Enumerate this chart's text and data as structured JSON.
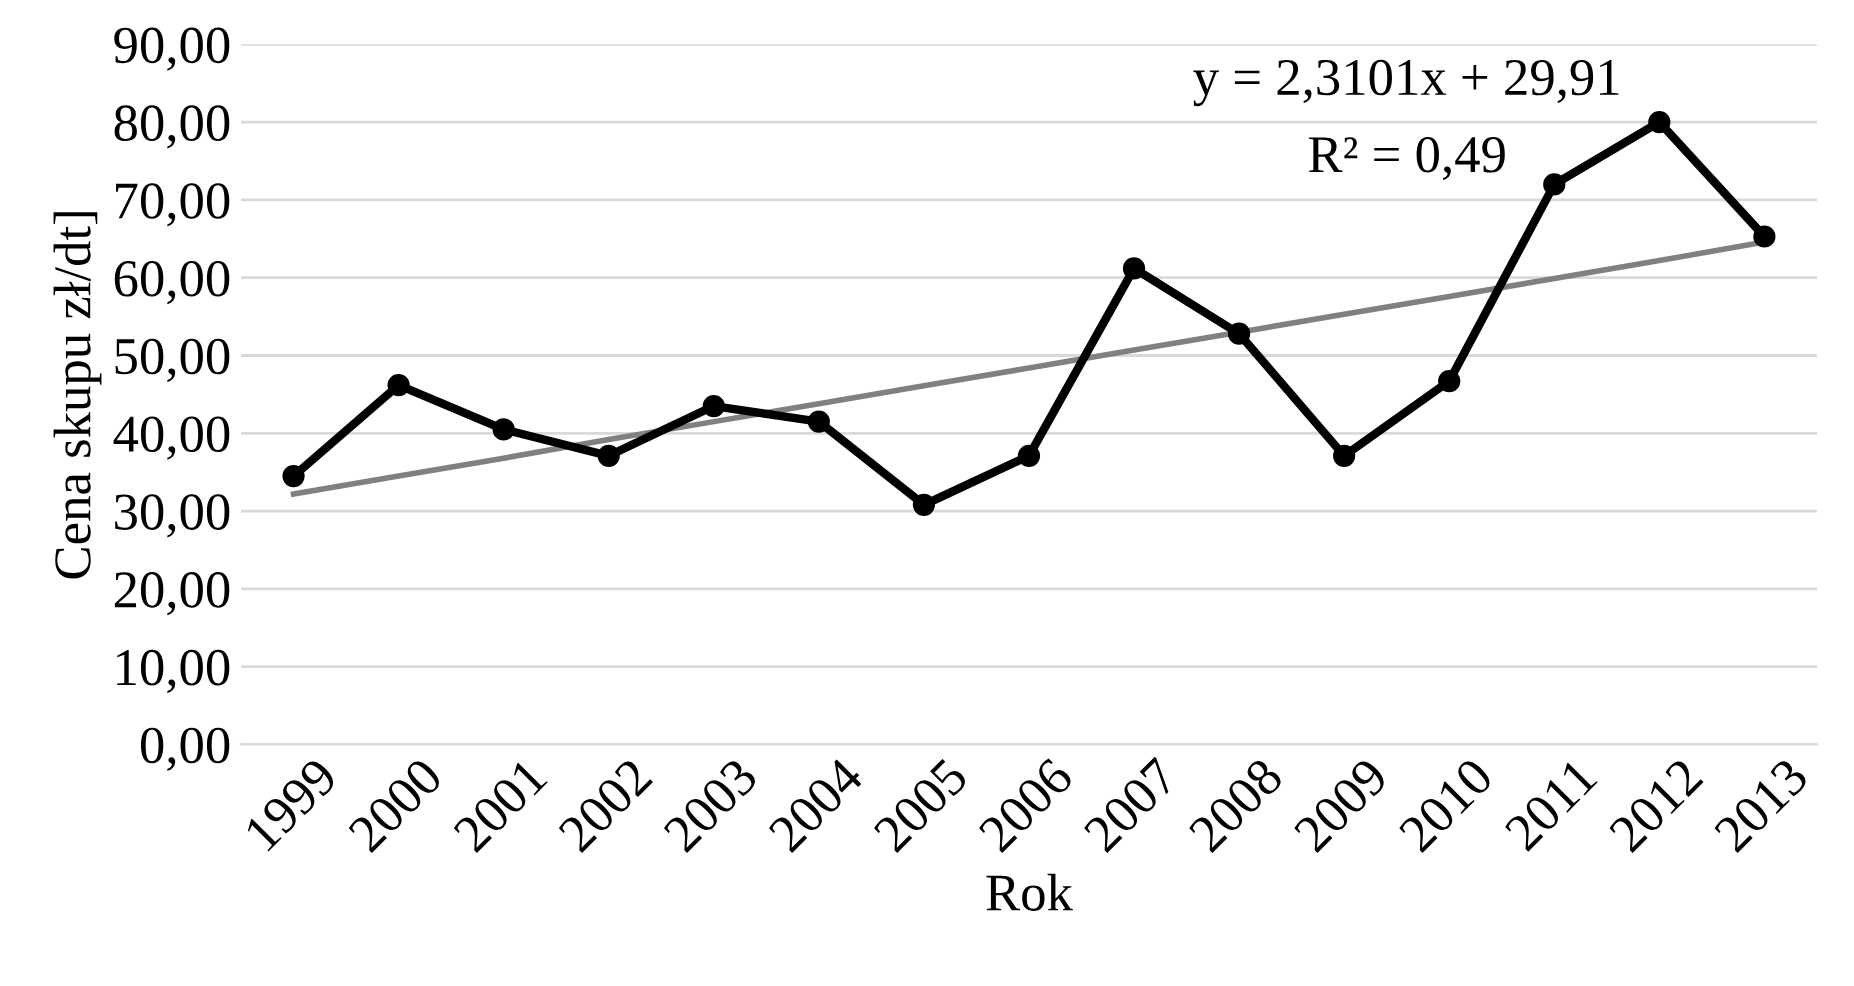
{
  "chart_data": {
    "type": "line",
    "xlabel": "Rok",
    "ylabel": "Cena skupu zł/dt]",
    "categories": [
      "1999",
      "2000",
      "2001",
      "2002",
      "2003",
      "2004",
      "2005",
      "2006",
      "2007",
      "2008",
      "2009",
      "2010",
      "2011",
      "2012",
      "2013"
    ],
    "series": [
      {
        "color": "#000000",
        "marker": "circle",
        "values": [
          34.5,
          46.2,
          40.5,
          37.1,
          43.5,
          41.5,
          30.8,
          37.1,
          61.2,
          52.8,
          37.1,
          46.7,
          72.0,
          80.0,
          65.3
        ]
      },
      {
        "color": "#808080",
        "marker": "none",
        "values": [
          32.2,
          34.5,
          36.8,
          39.2,
          41.5,
          43.8,
          46.1,
          48.4,
          50.7,
          53.0,
          55.3,
          57.6,
          59.9,
          62.2,
          64.6
        ]
      }
    ],
    "ylim": [
      0,
      90
    ],
    "yticks": [
      {
        "value": 0,
        "label": "0,00"
      },
      {
        "value": 10,
        "label": "10,00"
      },
      {
        "value": 20,
        "label": "20,00"
      },
      {
        "value": 30,
        "label": "30,00"
      },
      {
        "value": 40,
        "label": "40,00"
      },
      {
        "value": 50,
        "label": "50,00"
      },
      {
        "value": 60,
        "label": "60,00"
      },
      {
        "value": 70,
        "label": "70,00"
      },
      {
        "value": 80,
        "label": "80,00"
      },
      {
        "value": 90,
        "label": "90,00"
      }
    ],
    "grid": "y",
    "annotations": [
      "y = 2,3101x + 29,91",
      "R² = 0,49"
    ]
  }
}
